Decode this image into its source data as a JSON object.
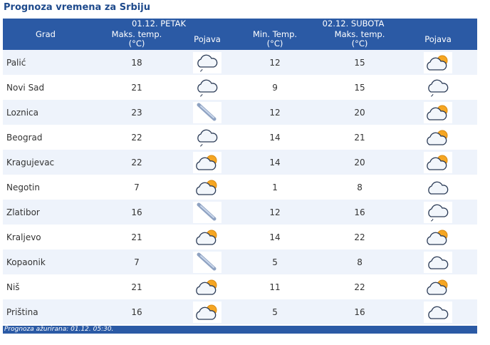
{
  "title": "Prognoza vremena za Srbiju",
  "header": {
    "day1": "01.12. PETAK",
    "day2": "02.12. SUBOTA",
    "col_city": "Grad",
    "col_max": "Maks. temp.",
    "col_min": "Min. Temp.",
    "unit": "(°C)",
    "col_phen": "Pojava"
  },
  "rows": [
    {
      "city": "Palić",
      "max1": "18",
      "icon1": "cloud-drizzle-icon",
      "min2": "12",
      "max2": "15",
      "icon2": "partly-cloudy-icon"
    },
    {
      "city": "Novi Sad",
      "max1": "21",
      "icon1": "cloud-drizzle-icon",
      "min2": "9",
      "max2": "15",
      "icon2": "cloud-drizzle-icon"
    },
    {
      "city": "Loznica",
      "max1": "23",
      "icon1": "wind-icon",
      "min2": "12",
      "max2": "20",
      "icon2": "partly-cloudy-icon"
    },
    {
      "city": "Beograd",
      "max1": "22",
      "icon1": "cloud-drizzle-icon",
      "min2": "14",
      "max2": "21",
      "icon2": "partly-cloudy-icon"
    },
    {
      "city": "Kragujevac",
      "max1": "22",
      "icon1": "partly-cloudy-icon",
      "min2": "14",
      "max2": "20",
      "icon2": "partly-cloudy-icon"
    },
    {
      "city": "Negotin",
      "max1": "7",
      "icon1": "partly-cloudy-icon",
      "min2": "1",
      "max2": "8",
      "icon2": "cloud-icon"
    },
    {
      "city": "Zlatibor",
      "max1": "16",
      "icon1": "wind-icon",
      "min2": "12",
      "max2": "16",
      "icon2": "cloud-drizzle-icon"
    },
    {
      "city": "Kraljevo",
      "max1": "21",
      "icon1": "partly-cloudy-icon",
      "min2": "14",
      "max2": "22",
      "icon2": "partly-cloudy-icon"
    },
    {
      "city": "Kopaonik",
      "max1": "7",
      "icon1": "wind-icon",
      "min2": "5",
      "max2": "8",
      "icon2": "cloud-icon"
    },
    {
      "city": "Niš",
      "max1": "21",
      "icon1": "partly-cloudy-icon",
      "min2": "11",
      "max2": "22",
      "icon2": "partly-cloudy-icon"
    },
    {
      "city": "Priština",
      "max1": "16",
      "icon1": "partly-cloudy-icon",
      "min2": "5",
      "max2": "16",
      "icon2": "cloud-icon"
    }
  ],
  "footer": "Prognoza ažurirana:  01.12. 05:30."
}
